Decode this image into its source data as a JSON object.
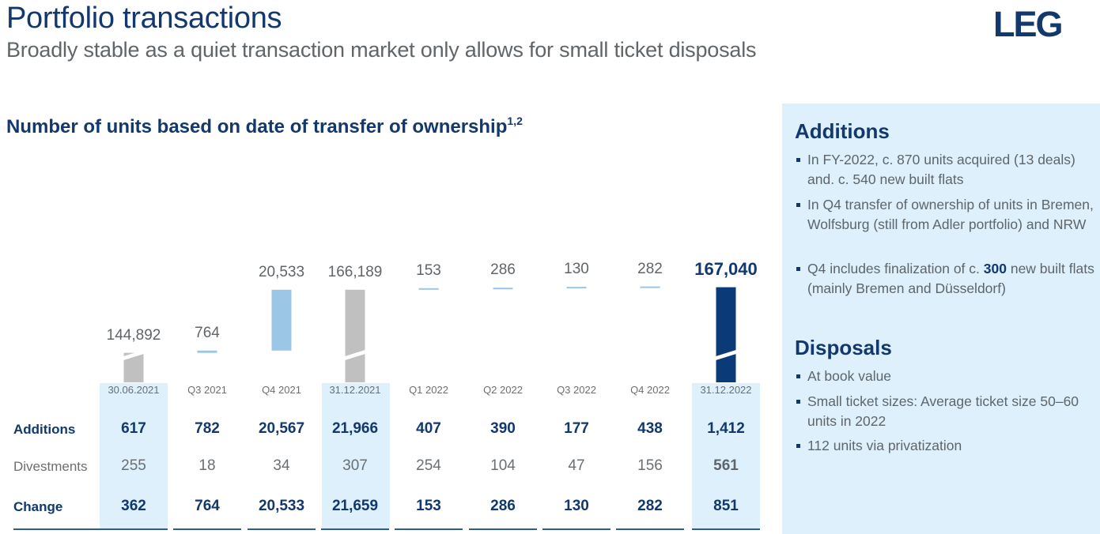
{
  "header": {
    "title": "Portfolio transactions",
    "subtitle": "Broadly stable as a quiet transaction market only allows for small ticket disposals",
    "logo_text": "LEG"
  },
  "chart": {
    "title": "Number of units based on date of transfer of ownership",
    "title_superscript": "1,2"
  },
  "chart_data": {
    "type": "bar",
    "subtype": "waterfall",
    "categories": [
      "30.06.2021",
      "Q3 2021",
      "Q4 2021",
      "31.12.2021",
      "Q1 2022",
      "Q2 2022",
      "Q3 2022",
      "Q4 2022",
      "31.12.2022"
    ],
    "value_labels": [
      "144,892",
      "764",
      "20,533",
      "166,189",
      "153",
      "286",
      "130",
      "282",
      "167,040"
    ],
    "values": [
      144892,
      764,
      20533,
      166189,
      153,
      286,
      130,
      282,
      167040
    ],
    "bar_kinds": [
      "total",
      "change",
      "change",
      "total",
      "change",
      "change",
      "change",
      "change",
      "total"
    ],
    "axis_break": true,
    "colors": {
      "total": "#c0c0c0",
      "final_total": "#0b3a78",
      "change": "#9cc6e6"
    },
    "table": {
      "rows": [
        {
          "label": "Additions",
          "values": [
            "617",
            "782",
            "20,567",
            "21,966",
            "407",
            "390",
            "177",
            "438",
            "1,412"
          ]
        },
        {
          "label": "Divestments",
          "values": [
            "255",
            "18",
            "34",
            "307",
            "254",
            "104",
            "47",
            "156",
            "561"
          ]
        },
        {
          "label": "Change",
          "values": [
            "362",
            "764",
            "20,533",
            "21,659",
            "153",
            "286",
            "130",
            "282",
            "851"
          ]
        }
      ]
    }
  },
  "panel": {
    "additions": {
      "heading": "Additions",
      "bullets": [
        {
          "text": "In FY-2022, c. 870 units acquired (13 deals) and. c. 540 new built flats"
        },
        {
          "text": "In Q4 transfer of ownership of units in Bremen, Wolfsburg (still from Adler portfolio) and NRW"
        },
        {
          "pre": "Q4 includes finalization of c. ",
          "bold": "300",
          "post": " new built flats (mainly Bremen and Düsseldorf)"
        }
      ]
    },
    "disposals": {
      "heading": "Disposals",
      "bullets": [
        {
          "text": "At book value"
        },
        {
          "text": "Small ticket sizes: Average ticket size 50–60 units in 2022"
        },
        {
          "text": "112 units via privatization"
        }
      ]
    }
  }
}
